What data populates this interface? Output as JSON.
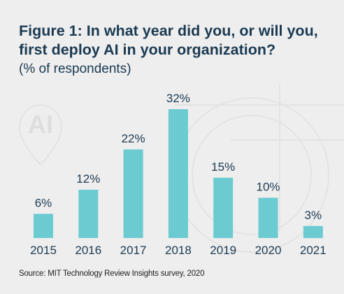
{
  "chart_data": {
    "type": "bar",
    "title": "Figure 1: In what year did you, or will you, first deploy AI in your organization?",
    "subtitle": "(% of respondents)",
    "categories": [
      "2015",
      "2016",
      "2017",
      "2018",
      "2019",
      "2020",
      "2021"
    ],
    "values": [
      6,
      12,
      22,
      32,
      15,
      10,
      3
    ],
    "value_labels": [
      "6%",
      "12%",
      "22%",
      "32%",
      "15%",
      "10%",
      "3%"
    ],
    "ylim": [
      0,
      32
    ],
    "xlabel": "",
    "ylabel": "",
    "grid": false,
    "legend": "none",
    "source": "Source: MIT Technology Review Insights survey, 2020",
    "bar_color": "#6ccbd1",
    "text_color": "#1b3a52",
    "watermark": "AI"
  }
}
